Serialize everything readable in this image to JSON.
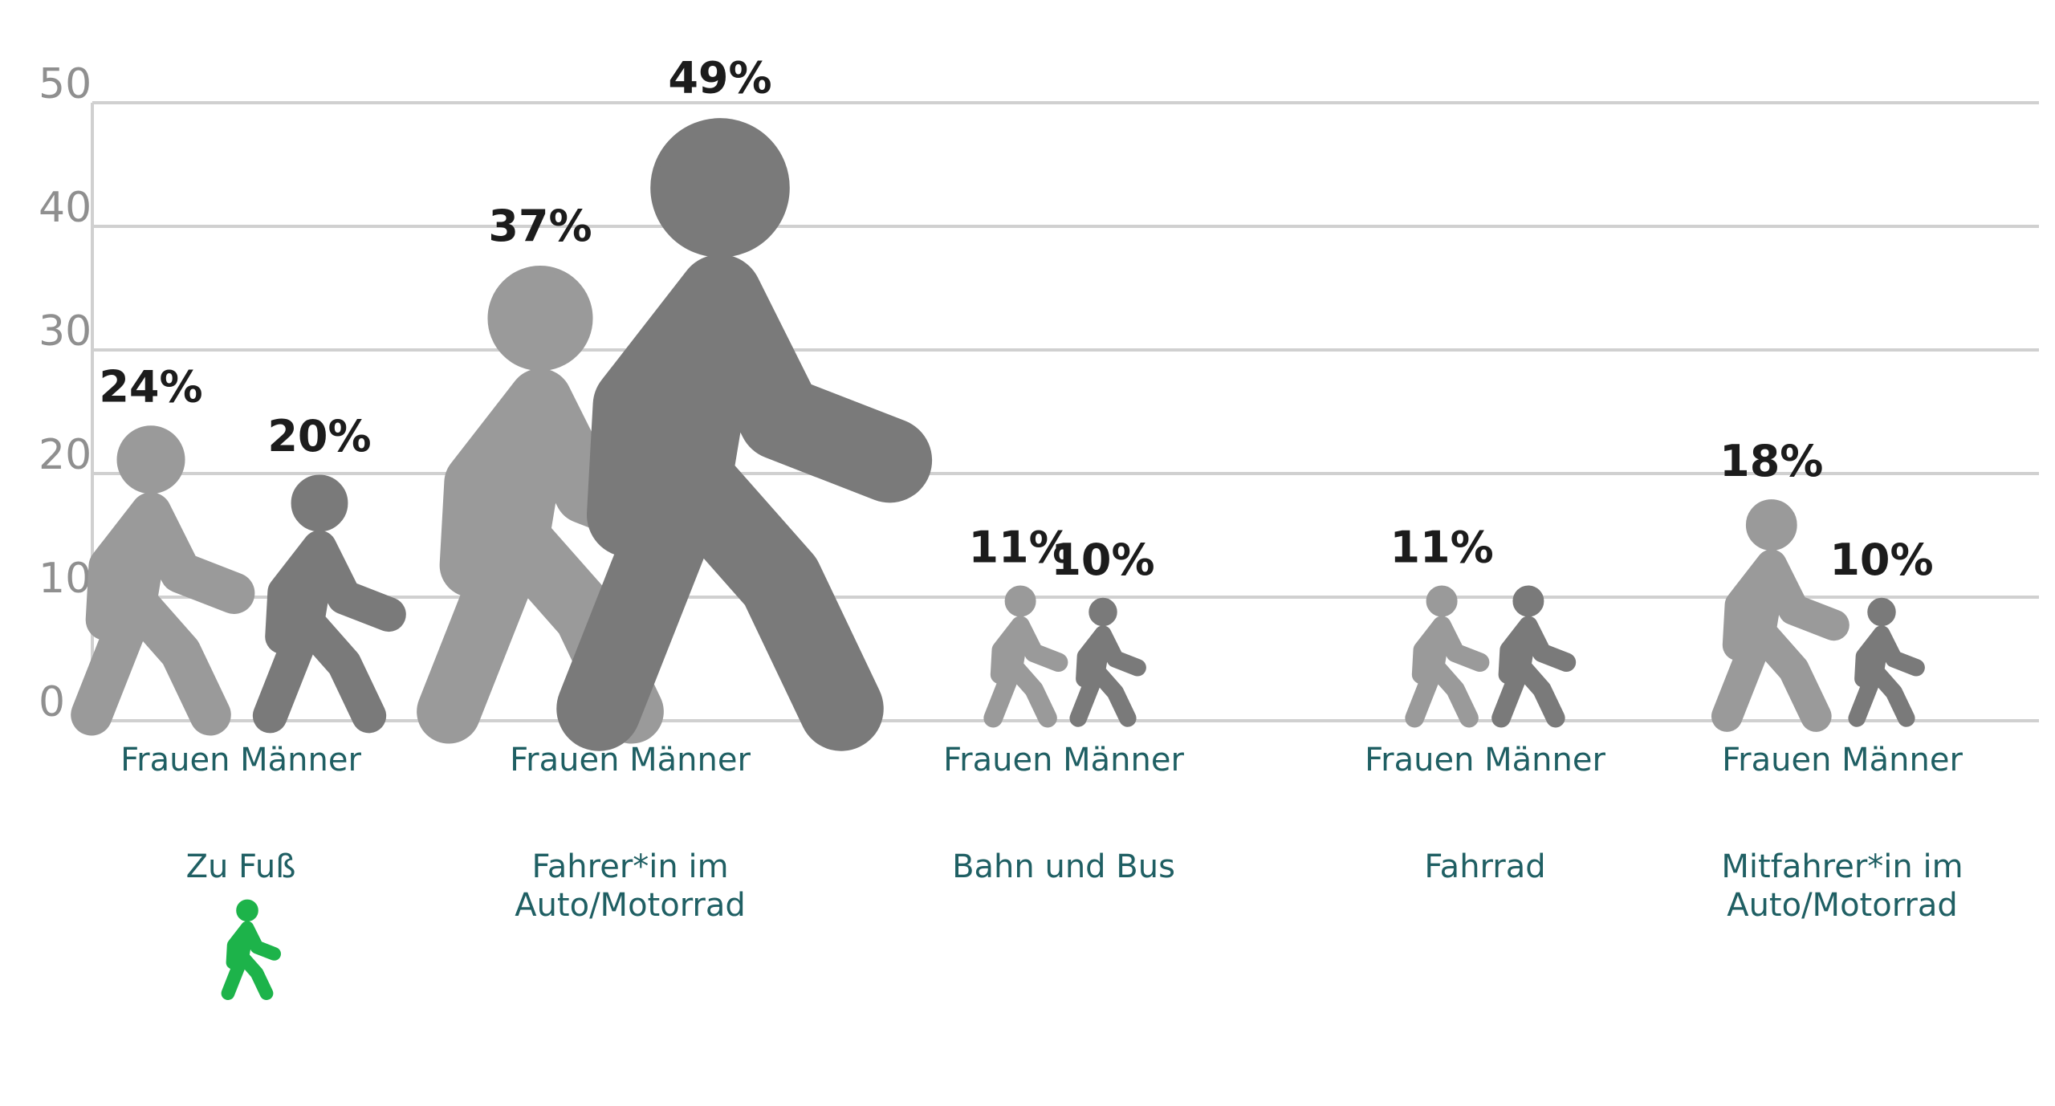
{
  "chart_data": {
    "type": "bar",
    "title": "",
    "xlabel": "",
    "ylabel": "",
    "ylim": [
      0,
      50
    ],
    "yticks": [
      0,
      10,
      20,
      30,
      40,
      50
    ],
    "grid": true,
    "legend": "none",
    "categories": [
      "Zu Fuß",
      "Fahrer*in im Auto/Motorrad",
      "Bahn und Bus",
      "Fahrrad",
      "Mitfahrer*in im Auto/Motorrad"
    ],
    "category_lines": [
      [
        "Zu Fuß"
      ],
      [
        "Fahrer*in im",
        "Auto/Motorrad"
      ],
      [
        "Bahn und Bus"
      ],
      [
        "Fahrrad"
      ],
      [
        "Mitfahrer*in im",
        "Auto/Motorrad"
      ]
    ],
    "group_labels": [
      "Frauen",
      "Männer"
    ],
    "series": [
      {
        "name": "Frauen",
        "values": [
          24,
          37,
          11,
          11,
          18
        ],
        "labels": [
          "24%",
          "37%",
          "11%",
          "11%",
          "18%"
        ]
      },
      {
        "name": "Männer",
        "values": [
          20,
          49,
          10,
          11,
          10
        ],
        "labels": [
          "20%",
          "49%",
          "10%",
          "",
          "10%"
        ]
      }
    ],
    "colors": {
      "frauen": "#9a9a9a",
      "maenner": "#7a7a7a",
      "highlight_icon": "#1db34a",
      "grid": "#d0d0d0",
      "tick_text": "#8f8f8f",
      "label_text": "#1f5f63",
      "value_text": "#1c1c1c"
    },
    "icon": "walking-person-icon",
    "highlight_category": "Zu Fuß"
  }
}
